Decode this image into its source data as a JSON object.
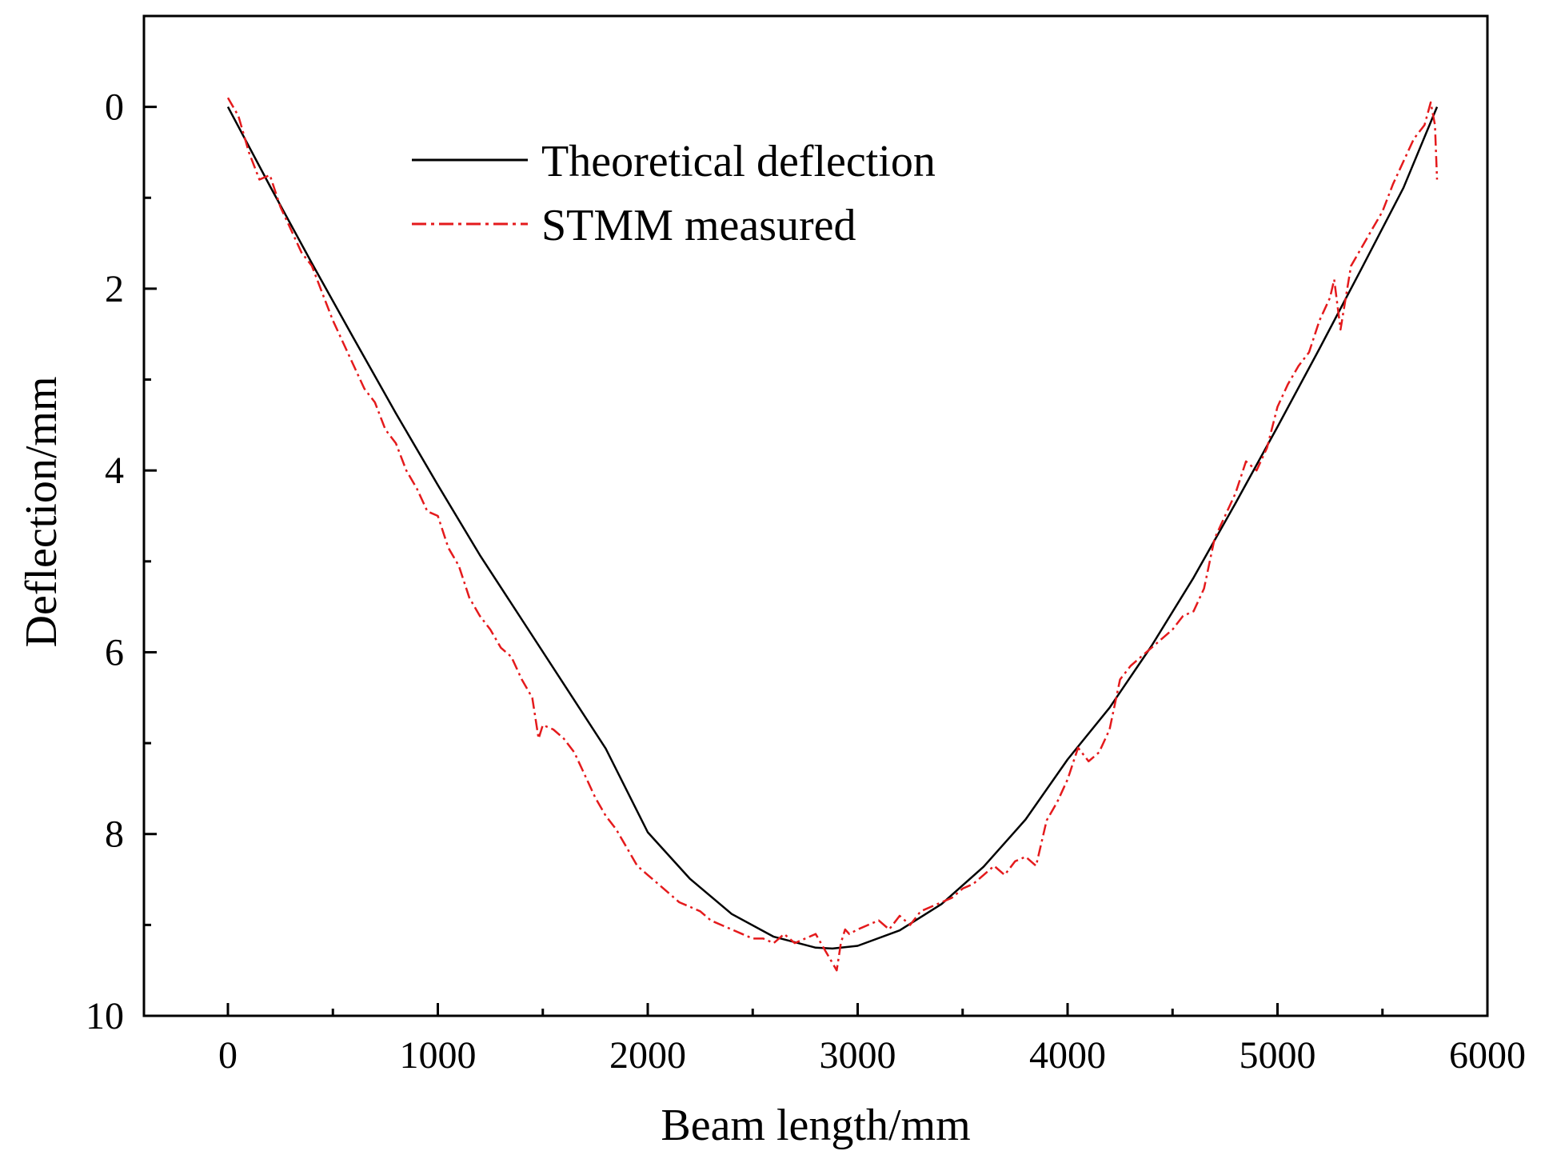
{
  "chart_data": {
    "type": "line",
    "title": "",
    "xlabel": "Beam length/mm",
    "ylabel": "Deflection/mm",
    "xlim": [
      -400,
      6000
    ],
    "ylim": [
      -1,
      10
    ],
    "y_inverted": true,
    "xticks": [
      0,
      1000,
      2000,
      3000,
      4000,
      5000,
      6000
    ],
    "xtick_labels": [
      "0",
      "1000",
      "2000",
      "3000",
      "4000",
      "5000",
      "6000"
    ],
    "xminor": [
      500,
      1500,
      2500,
      3500,
      4500,
      5500
    ],
    "yticks": [
      0,
      2,
      4,
      6,
      8,
      10
    ],
    "ytick_labels": [
      "0",
      "2",
      "4",
      "6",
      "8",
      "10"
    ],
    "yminor": [
      1,
      3,
      5,
      7,
      9
    ],
    "grid": false,
    "legend_position": "top-center",
    "series": [
      {
        "name": "Theoretical deflection",
        "color": "#000000",
        "style": "solid",
        "x": [
          0,
          200,
          400,
          600,
          800,
          1000,
          1200,
          1400,
          1600,
          1800,
          2000,
          2200,
          2400,
          2600,
          2800,
          2880,
          3000,
          3200,
          3400,
          3600,
          3800,
          4000,
          4200,
          4400,
          4600,
          4800,
          5000,
          5200,
          5400,
          5600,
          5760
        ],
        "values": [
          0.0,
          0.87,
          1.72,
          2.55,
          3.37,
          4.16,
          4.93,
          5.64,
          6.35,
          7.06,
          7.98,
          8.49,
          8.88,
          9.13,
          9.25,
          9.26,
          9.23,
          9.06,
          8.77,
          8.36,
          7.84,
          7.18,
          6.61,
          5.93,
          5.18,
          4.36,
          3.52,
          2.66,
          1.78,
          0.89,
          0.0
        ]
      },
      {
        "name": "STMM measured",
        "color": "#e41a1c",
        "style": "dashdot",
        "x": [
          0,
          50,
          100,
          150,
          200,
          250,
          300,
          350,
          400,
          450,
          500,
          550,
          600,
          650,
          700,
          750,
          800,
          850,
          900,
          950,
          1000,
          1050,
          1100,
          1150,
          1200,
          1250,
          1300,
          1350,
          1400,
          1450,
          1480,
          1500,
          1550,
          1600,
          1650,
          1700,
          1750,
          1800,
          1850,
          1900,
          1950,
          2000,
          2050,
          2100,
          2150,
          2200,
          2250,
          2300,
          2350,
          2400,
          2450,
          2500,
          2550,
          2600,
          2650,
          2700,
          2750,
          2800,
          2850,
          2900,
          2920,
          2940,
          2960,
          3000,
          3050,
          3100,
          3150,
          3200,
          3250,
          3300,
          3350,
          3400,
          3450,
          3500,
          3550,
          3600,
          3650,
          3700,
          3750,
          3800,
          3850,
          3900,
          3950,
          4000,
          4050,
          4100,
          4150,
          4200,
          4250,
          4300,
          4350,
          4400,
          4450,
          4500,
          4550,
          4600,
          4650,
          4700,
          4750,
          4800,
          4850,
          4900,
          4950,
          5000,
          5050,
          5100,
          5150,
          5200,
          5250,
          5270,
          5300,
          5350,
          5400,
          5450,
          5500,
          5550,
          5600,
          5650,
          5700,
          5730,
          5750,
          5760
        ],
        "values": [
          -0.1,
          0.1,
          0.5,
          0.8,
          0.75,
          1.1,
          1.35,
          1.6,
          1.75,
          2.05,
          2.35,
          2.6,
          2.85,
          3.1,
          3.25,
          3.55,
          3.7,
          4.0,
          4.2,
          4.45,
          4.5,
          4.85,
          5.05,
          5.4,
          5.6,
          5.75,
          5.95,
          6.05,
          6.3,
          6.5,
          6.95,
          6.8,
          6.85,
          6.95,
          7.1,
          7.35,
          7.6,
          7.8,
          7.95,
          8.15,
          8.35,
          8.45,
          8.55,
          8.65,
          8.75,
          8.8,
          8.85,
          8.95,
          9.0,
          9.05,
          9.1,
          9.15,
          9.15,
          9.2,
          9.1,
          9.2,
          9.15,
          9.1,
          9.3,
          9.5,
          9.2,
          9.05,
          9.1,
          9.05,
          9.0,
          8.95,
          9.05,
          8.9,
          9.0,
          8.85,
          8.8,
          8.75,
          8.7,
          8.6,
          8.55,
          8.45,
          8.35,
          8.45,
          8.3,
          8.25,
          8.35,
          7.85,
          7.65,
          7.4,
          7.05,
          7.2,
          7.1,
          6.85,
          6.3,
          6.15,
          6.05,
          5.95,
          5.85,
          5.75,
          5.6,
          5.55,
          5.3,
          4.75,
          4.5,
          4.25,
          3.9,
          4.0,
          3.75,
          3.3,
          3.05,
          2.85,
          2.7,
          2.35,
          2.1,
          1.9,
          2.45,
          1.75,
          1.55,
          1.35,
          1.15,
          0.85,
          0.6,
          0.35,
          0.2,
          -0.05,
          0.2,
          0.8
        ]
      }
    ]
  }
}
